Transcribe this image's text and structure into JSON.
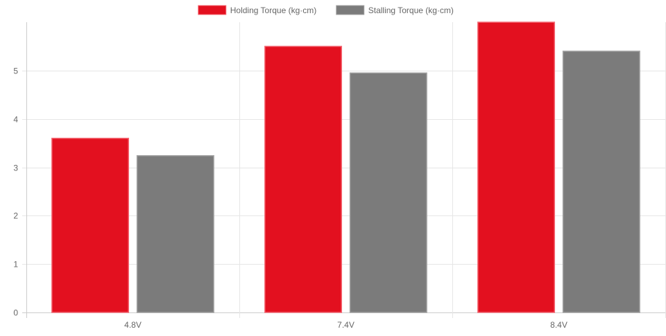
{
  "chart_data": {
    "type": "bar",
    "categories": [
      "4.8V",
      "7.4V",
      "8.4V"
    ],
    "series": [
      {
        "name": "Holding Torque (kg·cm)",
        "values": [
          3.6,
          5.5,
          6.0
        ],
        "color": "#E3101F",
        "border_color": "#F56B76"
      },
      {
        "name": "Stalling Torque (kg·cm)",
        "values": [
          3.24,
          4.95,
          5.4
        ],
        "color": "#7B7B7B",
        "border_color": "#A3A3A3"
      }
    ],
    "yticks": [
      "0",
      "1",
      "2",
      "3",
      "4",
      "5"
    ],
    "ylim": [
      0,
      6
    ],
    "grid": true,
    "legend_position": "top-center"
  }
}
